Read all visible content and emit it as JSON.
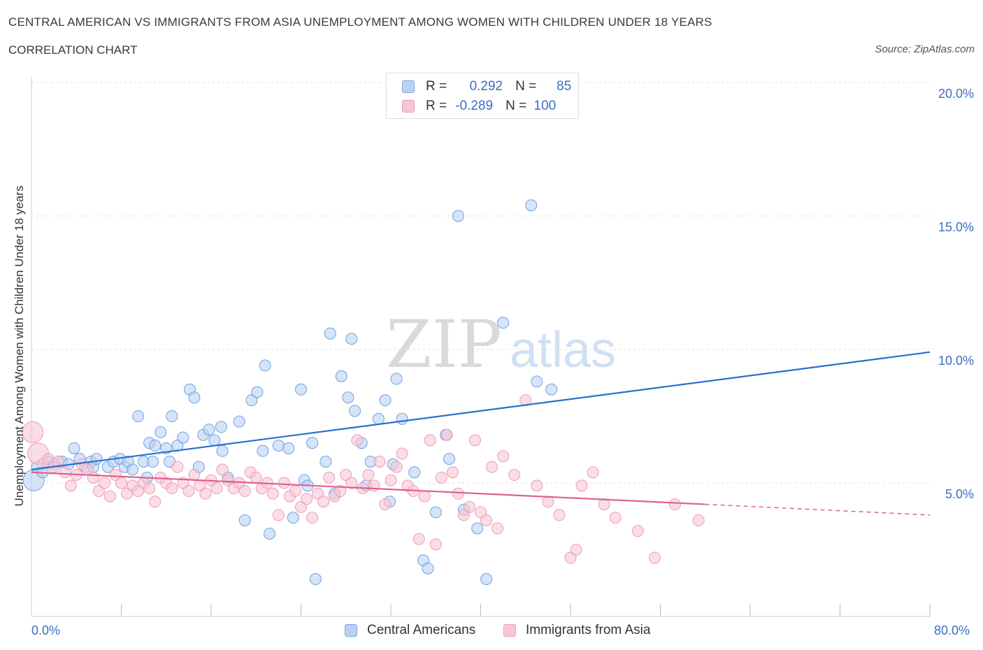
{
  "header": {
    "title": "CENTRAL AMERICAN VS IMMIGRANTS FROM ASIA UNEMPLOYMENT AMONG WOMEN WITH CHILDREN UNDER 18 YEARS",
    "subtitle": "CORRELATION CHART",
    "source": "Source: ZipAtlas.com"
  },
  "legend": {
    "blue": {
      "r_label": "R =",
      "r_value": "0.292",
      "n_label": "N =",
      "n_value": "85"
    },
    "pink": {
      "r_label": "R =",
      "r_value": "-0.289",
      "n_label": "N =",
      "n_value": "100"
    }
  },
  "colors": {
    "blue": "#6fa0e0",
    "blue_line": "#2a6fcf",
    "pink": "#f09ab8",
    "pink_line": "#e0608e"
  },
  "chart_data": {
    "type": "scatter",
    "ylabel": "Unemployment Among Women with Children Under 18 years",
    "xlim": [
      0,
      80
    ],
    "ylim": [
      0,
      20
    ],
    "y_ticks": [
      "5.0%",
      "10.0%",
      "15.0%",
      "20.0%"
    ],
    "x_tick_labels": [
      "0.0%",
      "80.0%"
    ],
    "grid": true,
    "legend_position": "top-center",
    "series": [
      {
        "name": "Central Americans",
        "trend": {
          "x": [
            0,
            80
          ],
          "y": [
            5.5,
            9.9
          ]
        },
        "points": [
          [
            0.2,
            5.1
          ],
          [
            0.5,
            5.6
          ],
          [
            1,
            5.4
          ],
          [
            1.5,
            5.8
          ],
          [
            2,
            5.7
          ],
          [
            2.7,
            5.8
          ],
          [
            3.3,
            5.7
          ],
          [
            3.8,
            6.3
          ],
          [
            4.3,
            5.9
          ],
          [
            4.8,
            5.6
          ],
          [
            5.3,
            5.8
          ],
          [
            5.5,
            5.6
          ],
          [
            5.8,
            5.9
          ],
          [
            6.8,
            5.6
          ],
          [
            7.3,
            5.8
          ],
          [
            7.9,
            5.9
          ],
          [
            8.3,
            5.6
          ],
          [
            8.6,
            5.8
          ],
          [
            9,
            5.5
          ],
          [
            9.5,
            7.5
          ],
          [
            10,
            5.8
          ],
          [
            10.3,
            5.2
          ],
          [
            10.5,
            6.5
          ],
          [
            10.8,
            5.8
          ],
          [
            11,
            6.4
          ],
          [
            11.5,
            6.9
          ],
          [
            12,
            6.3
          ],
          [
            12.3,
            5.8
          ],
          [
            12.5,
            7.5
          ],
          [
            13,
            6.4
          ],
          [
            13.5,
            6.7
          ],
          [
            14.1,
            8.5
          ],
          [
            14.5,
            8.2
          ],
          [
            14.9,
            5.6
          ],
          [
            15.3,
            6.8
          ],
          [
            15.8,
            7.0
          ],
          [
            16.3,
            6.6
          ],
          [
            16.9,
            7.1
          ],
          [
            17,
            6.2
          ],
          [
            17.5,
            5.2
          ],
          [
            18.5,
            7.3
          ],
          [
            19,
            3.6
          ],
          [
            19.6,
            8.1
          ],
          [
            20.1,
            8.4
          ],
          [
            20.6,
            6.2
          ],
          [
            20.8,
            9.4
          ],
          [
            21.2,
            3.1
          ],
          [
            22,
            6.4
          ],
          [
            22.9,
            6.3
          ],
          [
            23.3,
            3.7
          ],
          [
            24,
            8.5
          ],
          [
            24.3,
            5.1
          ],
          [
            24.6,
            4.9
          ],
          [
            25,
            6.5
          ],
          [
            25.3,
            1.4
          ],
          [
            26.2,
            5.8
          ],
          [
            26.6,
            10.6
          ],
          [
            27,
            4.6
          ],
          [
            27.6,
            9.0
          ],
          [
            28.2,
            8.2
          ],
          [
            28.5,
            10.4
          ],
          [
            28.8,
            7.7
          ],
          [
            29.4,
            6.5
          ],
          [
            29.8,
            4.9
          ],
          [
            30.2,
            5.8
          ],
          [
            30.9,
            7.4
          ],
          [
            31.5,
            8.1
          ],
          [
            31.9,
            4.3
          ],
          [
            32.2,
            5.7
          ],
          [
            32.5,
            8.9
          ],
          [
            33,
            7.4
          ],
          [
            34.1,
            5.4
          ],
          [
            34.9,
            2.1
          ],
          [
            35.3,
            1.8
          ],
          [
            36,
            3.9
          ],
          [
            36.9,
            6.8
          ],
          [
            37.2,
            5.9
          ],
          [
            38,
            15.0
          ],
          [
            38.5,
            4.0
          ],
          [
            39.7,
            3.3
          ],
          [
            40.5,
            1.4
          ],
          [
            42,
            11.0
          ],
          [
            44.5,
            15.4
          ],
          [
            45,
            8.8
          ],
          [
            46.3,
            8.5
          ]
        ]
      },
      {
        "name": "Immigrants from Asia",
        "trend": {
          "x": [
            0,
            60
          ],
          "y": [
            5.4,
            4.2
          ]
        },
        "trend_dashed": {
          "x": [
            60,
            80
          ],
          "y": [
            4.2,
            3.8
          ]
        },
        "points": [
          [
            0.1,
            6.9
          ],
          [
            0.6,
            6.1
          ],
          [
            1,
            5.7
          ],
          [
            1.5,
            5.9
          ],
          [
            2,
            5.6
          ],
          [
            2.4,
            5.8
          ],
          [
            3,
            5.4
          ],
          [
            3.5,
            4.9
          ],
          [
            4,
            5.3
          ],
          [
            4.5,
            5.7
          ],
          [
            5,
            5.5
          ],
          [
            5.5,
            5.2
          ],
          [
            6,
            4.7
          ],
          [
            6.5,
            5.0
          ],
          [
            7,
            4.5
          ],
          [
            7.5,
            5.3
          ],
          [
            8,
            5.0
          ],
          [
            8.5,
            4.6
          ],
          [
            9,
            4.9
          ],
          [
            9.5,
            4.7
          ],
          [
            10,
            5.0
          ],
          [
            10.5,
            4.8
          ],
          [
            11,
            4.3
          ],
          [
            11.5,
            5.2
          ],
          [
            12,
            5.0
          ],
          [
            12.5,
            4.8
          ],
          [
            13,
            5.6
          ],
          [
            13.5,
            5.0
          ],
          [
            14,
            4.7
          ],
          [
            14.5,
            5.3
          ],
          [
            15,
            4.9
          ],
          [
            15.5,
            4.6
          ],
          [
            16,
            5.1
          ],
          [
            16.5,
            4.8
          ],
          [
            17,
            5.5
          ],
          [
            17.5,
            5.1
          ],
          [
            18,
            4.8
          ],
          [
            18.5,
            5.0
          ],
          [
            19,
            4.7
          ],
          [
            19.5,
            5.4
          ],
          [
            20,
            5.2
          ],
          [
            20.5,
            4.8
          ],
          [
            21,
            5.0
          ],
          [
            21.5,
            4.6
          ],
          [
            22,
            3.8
          ],
          [
            22.5,
            5.0
          ],
          [
            23,
            4.5
          ],
          [
            23.5,
            4.7
          ],
          [
            24,
            4.1
          ],
          [
            24.5,
            4.4
          ],
          [
            25,
            3.7
          ],
          [
            25.5,
            4.6
          ],
          [
            26,
            4.3
          ],
          [
            26.5,
            5.2
          ],
          [
            27,
            4.5
          ],
          [
            27.5,
            4.7
          ],
          [
            28,
            5.3
          ],
          [
            28.5,
            5.0
          ],
          [
            29,
            6.6
          ],
          [
            29.5,
            4.8
          ],
          [
            30,
            5.3
          ],
          [
            30.5,
            4.9
          ],
          [
            31,
            5.8
          ],
          [
            31.5,
            4.2
          ],
          [
            32,
            5.1
          ],
          [
            32.5,
            5.6
          ],
          [
            33,
            6.1
          ],
          [
            33.5,
            4.9
          ],
          [
            34,
            4.7
          ],
          [
            34.5,
            2.9
          ],
          [
            35,
            4.5
          ],
          [
            35.5,
            6.6
          ],
          [
            36,
            2.7
          ],
          [
            36.5,
            5.2
          ],
          [
            37,
            6.8
          ],
          [
            37.5,
            5.4
          ],
          [
            38,
            4.6
          ],
          [
            38.5,
            3.8
          ],
          [
            39,
            4.1
          ],
          [
            39.5,
            6.6
          ],
          [
            40,
            3.9
          ],
          [
            40.5,
            3.6
          ],
          [
            41,
            5.6
          ],
          [
            41.5,
            3.3
          ],
          [
            42,
            6.0
          ],
          [
            43,
            5.3
          ],
          [
            44,
            8.1
          ],
          [
            45,
            4.9
          ],
          [
            46,
            4.3
          ],
          [
            47,
            3.8
          ],
          [
            48,
            2.2
          ],
          [
            48.5,
            2.5
          ],
          [
            49,
            4.9
          ],
          [
            50,
            5.4
          ],
          [
            51,
            4.2
          ],
          [
            52,
            3.7
          ],
          [
            54,
            3.2
          ],
          [
            55.5,
            2.2
          ],
          [
            57.3,
            4.2
          ],
          [
            59.4,
            3.6
          ]
        ]
      }
    ]
  },
  "bottom_legend": {
    "blue_label": "Central Americans",
    "pink_label": "Immigrants from Asia"
  },
  "watermark": {
    "zip": "ZIP",
    "atlas": "atlas"
  }
}
